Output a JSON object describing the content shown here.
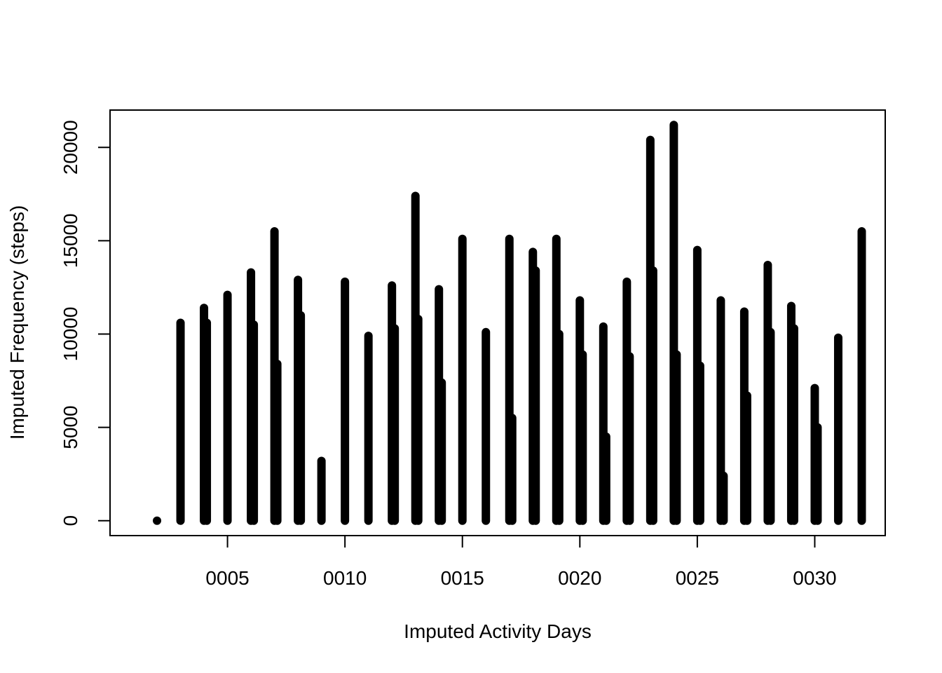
{
  "chart_data": {
    "type": "bar",
    "title": "",
    "xlabel": "Imputed Activity Days",
    "ylabel": "Imputed Frequency (steps)",
    "xlim": [
      0,
      33
    ],
    "ylim": [
      -800,
      22000
    ],
    "x_ticks": [
      {
        "value": 5,
        "label": "0005"
      },
      {
        "value": 10,
        "label": "0010"
      },
      {
        "value": 15,
        "label": "0015"
      },
      {
        "value": 20,
        "label": "0020"
      },
      {
        "value": 25,
        "label": "0025"
      },
      {
        "value": 30,
        "label": "0030"
      }
    ],
    "y_ticks": [
      {
        "value": 0,
        "label": "0"
      },
      {
        "value": 5000,
        "label": "5000"
      },
      {
        "value": 10000,
        "label": "10000"
      },
      {
        "value": 15000,
        "label": "15000"
      },
      {
        "value": 20000,
        "label": "20000"
      }
    ],
    "grid": false,
    "legend": "none",
    "bar_color": "#000000",
    "days": [
      {
        "day": 2,
        "max": 0
      },
      {
        "day": 3,
        "max": 10600
      },
      {
        "day": 4,
        "max": 11400,
        "secondary": 10600
      },
      {
        "day": 5,
        "max": 12100
      },
      {
        "day": 6,
        "max": 13300,
        "secondary": 10500
      },
      {
        "day": 7,
        "max": 15500,
        "secondary": 8400
      },
      {
        "day": 8,
        "max": 12900,
        "secondary": 11000
      },
      {
        "day": 9,
        "max": 3200
      },
      {
        "day": 10,
        "max": 12800
      },
      {
        "day": 11,
        "max": 9900
      },
      {
        "day": 12,
        "max": 12600,
        "secondary": 10300
      },
      {
        "day": 13,
        "max": 17400,
        "secondary": 10800
      },
      {
        "day": 14,
        "max": 12400,
        "secondary": 7400
      },
      {
        "day": 15,
        "max": 15100
      },
      {
        "day": 16,
        "max": 10100
      },
      {
        "day": 17,
        "max": 15100,
        "secondary": 5500
      },
      {
        "day": 18,
        "max": 14400,
        "secondary": 13400
      },
      {
        "day": 19,
        "max": 15100,
        "secondary": 10000
      },
      {
        "day": 20,
        "max": 11800,
        "secondary": 8900
      },
      {
        "day": 21,
        "max": 10400,
        "secondary": 4500
      },
      {
        "day": 22,
        "max": 12800,
        "secondary": 8800
      },
      {
        "day": 23,
        "max": 20400,
        "secondary": 13400
      },
      {
        "day": 24,
        "max": 21200,
        "secondary": 8900
      },
      {
        "day": 25,
        "max": 14500,
        "secondary": 8300
      },
      {
        "day": 26,
        "max": 11800,
        "secondary": 2400
      },
      {
        "day": 27,
        "max": 11200,
        "secondary": 6700
      },
      {
        "day": 28,
        "max": 13700,
        "secondary": 10100
      },
      {
        "day": 29,
        "max": 11500,
        "secondary": 10300
      },
      {
        "day": 30,
        "max": 7100,
        "secondary": 5000
      },
      {
        "day": 31,
        "max": 9800
      },
      {
        "day": 32,
        "max": 15500
      }
    ]
  }
}
